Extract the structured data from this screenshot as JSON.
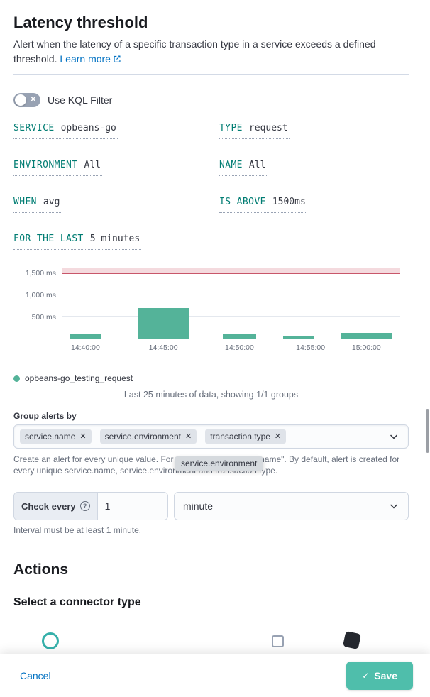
{
  "header": {
    "title": "Latency threshold",
    "description": "Alert when the latency of a specific transaction type in a service exceeds a defined threshold.",
    "learn_more": "Learn more"
  },
  "kql_switch": {
    "label": "Use KQL Filter"
  },
  "expressions": [
    {
      "label": "SERVICE",
      "value": "opbeans-go"
    },
    {
      "label": "TYPE",
      "value": "request"
    },
    {
      "label": "ENVIRONMENT",
      "value": "All"
    },
    {
      "label": "NAME",
      "value": "All"
    },
    {
      "label": "WHEN",
      "value": "avg"
    },
    {
      "label": "IS ABOVE",
      "value": "1500ms"
    },
    {
      "label": "FOR THE LAST",
      "value": "5 minutes"
    }
  ],
  "chart_data": {
    "type": "bar",
    "unit": "ms",
    "ylim": [
      0,
      1620
    ],
    "grid": true,
    "threshold": {
      "value": 1500,
      "line_color": "#c8566a",
      "fill_color": "#f4dade"
    },
    "bar_color": "#54b399",
    "y_ticks": [
      {
        "label": "1,500 ms",
        "value": 1500
      },
      {
        "label": "1,000 ms",
        "value": 1000
      },
      {
        "label": "500 ms",
        "value": 500
      }
    ],
    "x_ticks": [
      {
        "label": "14:40:00",
        "pos": 0.07
      },
      {
        "label": "14:45:00",
        "pos": 0.3
      },
      {
        "label": "14:50:00",
        "pos": 0.525
      },
      {
        "label": "14:55:00",
        "pos": 0.735
      },
      {
        "label": "15:00:00",
        "pos": 0.9
      }
    ],
    "bars": [
      {
        "start": 0.025,
        "width": 0.09,
        "value": 110
      },
      {
        "start": 0.225,
        "width": 0.15,
        "value": 700
      },
      {
        "start": 0.475,
        "width": 0.1,
        "value": 110
      },
      {
        "start": 0.655,
        "width": 0.09,
        "value": 45
      },
      {
        "start": 0.825,
        "width": 0.15,
        "value": 130
      }
    ],
    "legend": {
      "label": "opbeans-go_testing_request",
      "color": "#54b399",
      "position": "bottom-left"
    },
    "caption": "Last 25 minutes of data, showing 1/1 groups"
  },
  "group_by": {
    "label": "Group alerts by",
    "tags": [
      {
        "label": "service.name"
      },
      {
        "label": "service.environment"
      },
      {
        "label": "transaction.type"
      }
    ],
    "remove_icon": "✕",
    "help": "Create an alert for every unique value. For example: \"transaction.name\". By default, alert is created for every unique service.name, service.environment and transaction.type.",
    "tooltip": "service.environment"
  },
  "interval": {
    "prepend": "Check every",
    "value": "1",
    "unit": "minute",
    "help": "Interval must be at least 1 minute."
  },
  "actions": {
    "title": "Actions",
    "subtitle": "Select a connector type"
  },
  "footer": {
    "cancel": "Cancel",
    "save": "Save",
    "save_check": "✓",
    "save_color": "#4fbeab"
  }
}
